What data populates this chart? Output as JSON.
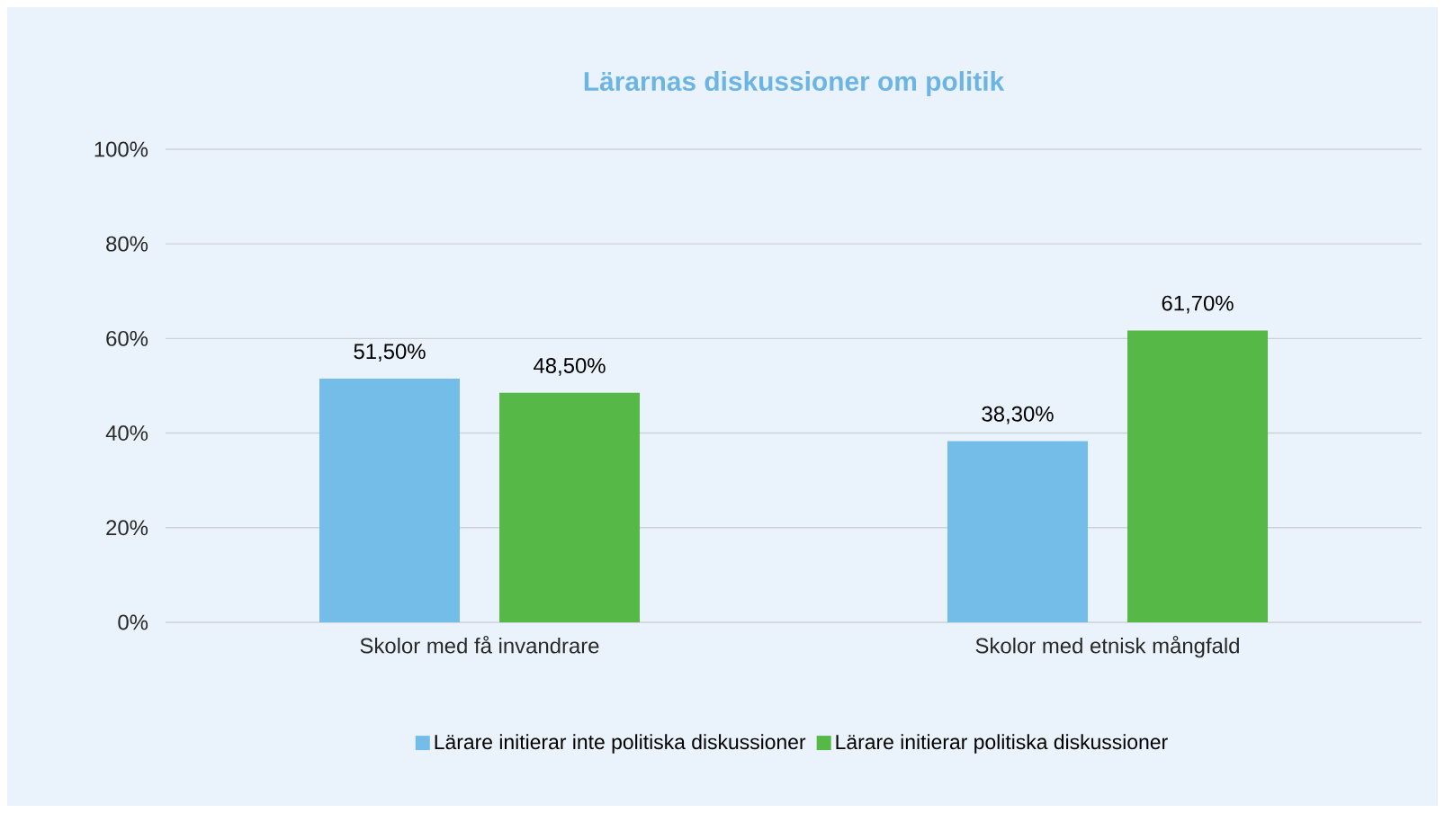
{
  "chart_data": {
    "type": "bar",
    "title": "Lärarnas diskussioner om politik",
    "categories": [
      "Skolor med få invandrare",
      "Skolor med etnisk mångfald"
    ],
    "series": [
      {
        "name": "Lärare initierar inte politiska diskussioner",
        "color": "#74bde9",
        "values": [
          51.5,
          38.3
        ],
        "value_labels": [
          "51,50%",
          "38,30%"
        ]
      },
      {
        "name": "Lärare initierar politiska diskussioner",
        "color": "#56b847",
        "values": [
          48.5,
          61.7
        ],
        "value_labels": [
          "48,50%",
          "61,70%"
        ]
      }
    ],
    "ylim": [
      0,
      100
    ],
    "yticks": [
      {
        "value": 0,
        "label": "0%"
      },
      {
        "value": 20,
        "label": "20%"
      },
      {
        "value": 40,
        "label": "40%"
      },
      {
        "value": 60,
        "label": "60%"
      },
      {
        "value": 80,
        "label": "80%"
      },
      {
        "value": 100,
        "label": "100%"
      }
    ],
    "grid": "y",
    "legend": "bottom"
  }
}
